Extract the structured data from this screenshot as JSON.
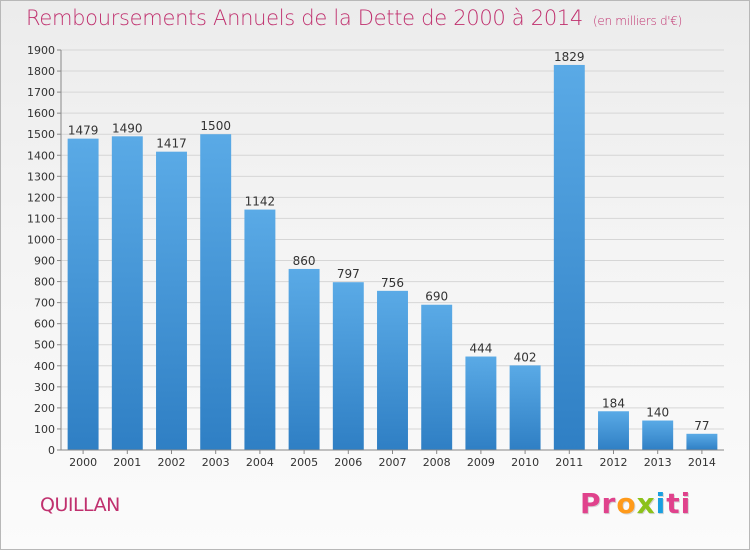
{
  "header": {
    "title": "Remboursements Annuels de la Dette de 2000 à 2014",
    "unit": "(en milliers d'€)"
  },
  "footer": {
    "commune": "QUILLAN",
    "logo_parts": [
      "Pr",
      "o",
      "x",
      "i",
      "ti"
    ]
  },
  "colors": {
    "accent": "#c0306e",
    "bar_light": "#5aaae6",
    "bar_dark": "#2f7fc4",
    "logo": [
      "#e0428c",
      "#ff9a1a",
      "#8cc21a",
      "#1a9fe0",
      "#e0428c"
    ]
  },
  "chart_data": {
    "type": "bar",
    "categories": [
      "2000",
      "2001",
      "2002",
      "2003",
      "2004",
      "2005",
      "2006",
      "2007",
      "2008",
      "2009",
      "2010",
      "2011",
      "2012",
      "2013",
      "2014"
    ],
    "values": [
      1479,
      1490,
      1417,
      1500,
      1142,
      860,
      797,
      756,
      690,
      444,
      402,
      1829,
      184,
      140,
      77
    ],
    "title": "Remboursements Annuels de la Dette de 2000 à 2014",
    "xlabel": "",
    "ylabel": "",
    "ylim": [
      0,
      1900
    ],
    "yticks": [
      0,
      100,
      200,
      300,
      400,
      500,
      600,
      700,
      800,
      900,
      1000,
      1100,
      1200,
      1300,
      1400,
      1500,
      1600,
      1700,
      1800,
      1900
    ],
    "grid": true,
    "legend": "none"
  }
}
